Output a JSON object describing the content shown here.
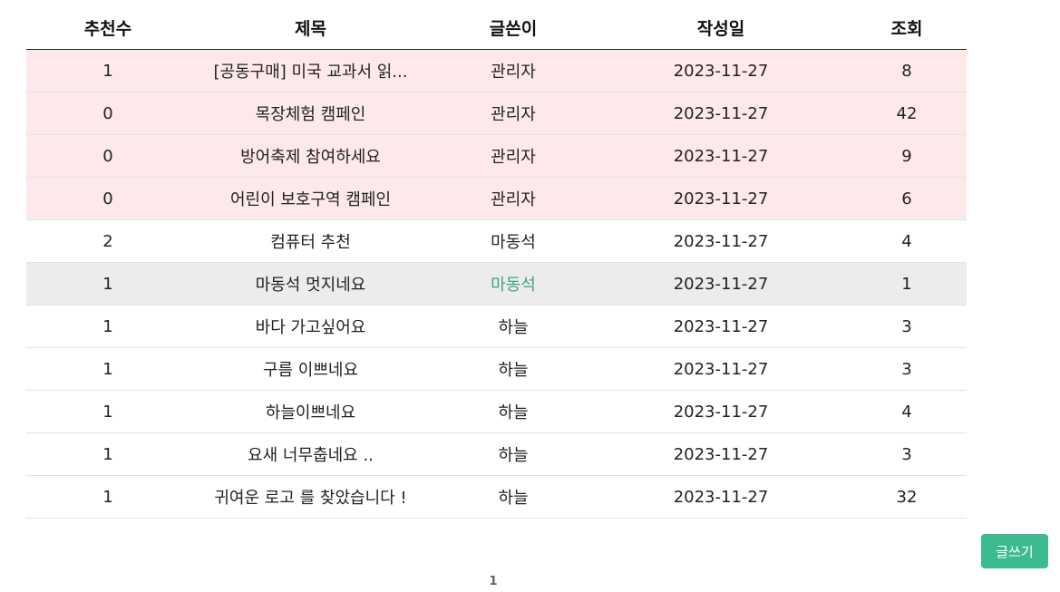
{
  "table": {
    "headers": {
      "recommend": "추천수",
      "title": "제목",
      "author": "글쓴이",
      "date": "작성일",
      "views": "조회"
    },
    "rows": [
      {
        "recommend": "1",
        "title": "[공동구매] 미국 교과서 읽...",
        "author": "관리자",
        "date": "2023-11-27",
        "views": "8",
        "type": "notice"
      },
      {
        "recommend": "0",
        "title": "목장체험 캠페인",
        "author": "관리자",
        "date": "2023-11-27",
        "views": "42",
        "type": "notice"
      },
      {
        "recommend": "0",
        "title": "방어축제 참여하세요",
        "author": "관리자",
        "date": "2023-11-27",
        "views": "9",
        "type": "notice"
      },
      {
        "recommend": "0",
        "title": "어린이 보호구역 캠페인",
        "author": "관리자",
        "date": "2023-11-27",
        "views": "6",
        "type": "notice"
      },
      {
        "recommend": "2",
        "title": "컴퓨터 추천",
        "author": "마동석",
        "date": "2023-11-27",
        "views": "4",
        "type": "normal"
      },
      {
        "recommend": "1",
        "title": "마동석 멋지네요",
        "author": "마동석",
        "date": "2023-11-27",
        "views": "1",
        "type": "highlight"
      },
      {
        "recommend": "1",
        "title": "바다 가고싶어요",
        "author": "하늘",
        "date": "2023-11-27",
        "views": "3",
        "type": "normal"
      },
      {
        "recommend": "1",
        "title": "구름 이쁘네요",
        "author": "하늘",
        "date": "2023-11-27",
        "views": "3",
        "type": "normal"
      },
      {
        "recommend": "1",
        "title": "하늘이쁘네요",
        "author": "하늘",
        "date": "2023-11-27",
        "views": "4",
        "type": "normal"
      },
      {
        "recommend": "1",
        "title": "요새 너무춥네요 ..",
        "author": "하늘",
        "date": "2023-11-27",
        "views": "3",
        "type": "normal"
      },
      {
        "recommend": "1",
        "title": "귀여운 로고 를 찾았습니다 !",
        "author": "하늘",
        "date": "2023-11-27",
        "views": "32",
        "type": "normal"
      }
    ]
  },
  "write_button_label": "글쓰기",
  "pagination": {
    "current_page": "1"
  },
  "colors": {
    "notice_row_bg": "#fde9ea",
    "highlight_row_bg": "#ececec",
    "active_author": "#3aa57a",
    "write_button_bg": "#3dbb8e"
  }
}
